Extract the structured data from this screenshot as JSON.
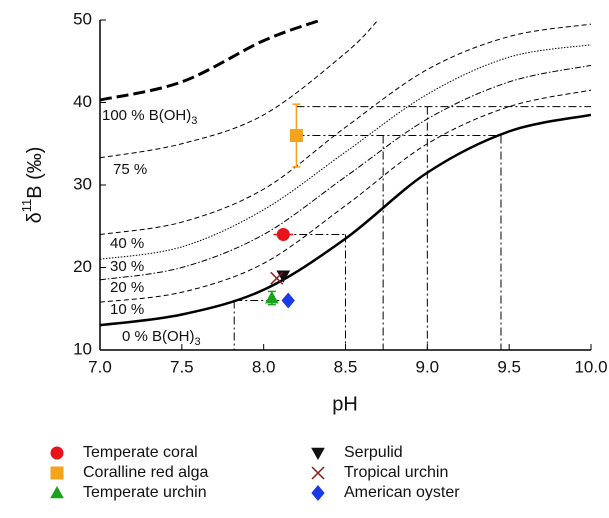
{
  "chart_data": {
    "type": "line",
    "xlabel": "pH",
    "ylabel": {
      "prefix": "δ",
      "sup": "11",
      "main": "B (‰)"
    },
    "xlim": [
      7,
      10
    ],
    "ylim": [
      10,
      50
    ],
    "xticks": [
      {
        "value": 7,
        "label": "7.0"
      },
      7.5,
      {
        "value": 8,
        "label": "8.0"
      },
      8.5,
      {
        "value": 9,
        "label": "9.0"
      },
      9.5,
      {
        "value": 10,
        "label": "10.0"
      }
    ],
    "yticks": [
      10,
      20,
      30,
      40,
      50
    ],
    "curves": [
      {
        "style": "solid",
        "x": [
          7,
          7.5,
          8,
          8.5,
          9,
          9.5,
          10
        ],
        "values": [
          13,
          14.3,
          17.3,
          23.5,
          31.5,
          36.5,
          38.5
        ]
      },
      {
        "style": "dashed",
        "x": [
          7,
          7.5,
          8,
          8.5,
          9,
          9.5,
          10
        ],
        "values": [
          15.8,
          17,
          20.5,
          27.5,
          35,
          39.5,
          41.5
        ]
      },
      {
        "style": "dashdot",
        "x": [
          7,
          7.5,
          8,
          8.5,
          9,
          9.5,
          10
        ],
        "values": [
          18.5,
          20,
          24,
          31,
          38,
          42.5,
          44.5
        ]
      },
      {
        "style": "dotted",
        "x": [
          7,
          7.5,
          8,
          8.5,
          9,
          9.5,
          10
        ],
        "values": [
          21,
          22.5,
          27,
          34,
          41,
          45.5,
          47
        ]
      },
      {
        "style": "dashed",
        "x": [
          7,
          7.5,
          8,
          8.5,
          9,
          9.5,
          10
        ],
        "values": [
          24,
          25.5,
          29.5,
          37,
          44,
          48,
          49.5
        ]
      },
      {
        "style": "dashed",
        "x": [
          7,
          7.5,
          8,
          8.5,
          8.7
        ],
        "values": [
          33.3,
          35,
          38.5,
          46,
          50
        ]
      },
      {
        "style": "thick",
        "x": [
          7,
          7.5,
          8,
          8.35
        ],
        "values": [
          40.3,
          42.5,
          47.5,
          50
        ]
      }
    ],
    "curve_labels": [
      {
        "main": "0 % B(OH)",
        "sub": "3"
      },
      {
        "main": "10 %"
      },
      {
        "main": "20 %"
      },
      {
        "main": "30 %"
      },
      {
        "main": "40 %"
      },
      {
        "main": "75 %"
      },
      {
        "main": "100 % B(OH)",
        "sub": "3"
      }
    ],
    "guides": [
      [
        8.2,
        39.5,
        10,
        39.5
      ],
      [
        9,
        39.5,
        9,
        10
      ],
      [
        8.2,
        36,
        9.45,
        36
      ],
      [
        8.73,
        36,
        8.73,
        10
      ],
      [
        9.45,
        36,
        9.45,
        10
      ],
      [
        8.12,
        24,
        8.5,
        24
      ],
      [
        8.5,
        24,
        8.5,
        10
      ],
      [
        7.82,
        16,
        8.15,
        16
      ],
      [
        7.82,
        16,
        7.82,
        10
      ]
    ],
    "series": [
      {
        "name": "Temperate coral",
        "color": "#e8141b",
        "marker": "circle",
        "x": [
          8.12
        ],
        "values": [
          24
        ],
        "xerr": [
          0.06
        ]
      },
      {
        "name": "Serpulid",
        "color": "#111111",
        "marker": "tri-down",
        "x": [
          8.12
        ],
        "values": [
          19
        ]
      },
      {
        "name": "Coralline red alga",
        "color": "#f5a31a",
        "marker": "square",
        "x": [
          8.2
        ],
        "values": [
          36
        ],
        "yerr": [
          3.8
        ]
      },
      {
        "name": "Tropical urchin",
        "color": "#8b1a1a",
        "marker": "x",
        "x": [
          8.08
        ],
        "values": [
          18.7
        ]
      },
      {
        "name": "Temperate urchin",
        "color": "#1aa31a",
        "marker": "tri-up",
        "x": [
          8.05
        ],
        "values": [
          16.3
        ],
        "yerr": [
          0.8
        ]
      },
      {
        "name": "American oyster",
        "color": "#1a3ae8",
        "marker": "diamond",
        "x": [
          8.15
        ],
        "values": [
          16
        ]
      }
    ]
  }
}
